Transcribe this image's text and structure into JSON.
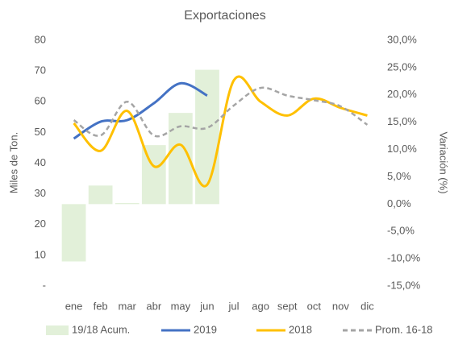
{
  "chart_data": {
    "type": "bar-line",
    "title": "Exportaciones",
    "y_label": "Miles de Ton.",
    "y2_label": "Variación (%)",
    "categories": [
      "ene",
      "feb",
      "mar",
      "abr",
      "may",
      "jun",
      "jul",
      "ago",
      "sept",
      "oct",
      "nov",
      "dic"
    ],
    "ylim": [
      0,
      80
    ],
    "yticks": [
      {
        "value": 0,
        "label": "-"
      },
      10,
      20,
      30,
      40,
      50,
      60,
      70,
      80
    ],
    "y2lim": [
      -15,
      30
    ],
    "y2ticks": [
      {
        "value": -15,
        "label": "-15,0%"
      },
      {
        "value": -10,
        "label": "-10,0%"
      },
      {
        "value": -5,
        "label": "-5,0%"
      },
      {
        "value": 0,
        "label": "0,0%"
      },
      {
        "value": 5,
        "label": "5,0%"
      },
      {
        "value": 10,
        "label": "10,0%"
      },
      {
        "value": 15,
        "label": "15,0%"
      },
      {
        "value": 20,
        "label": "20,0%"
      },
      {
        "value": 25,
        "label": "25,0%"
      },
      {
        "value": 30,
        "label": "30,0%"
      }
    ],
    "series": [
      {
        "name": "19/18 Acum.",
        "type": "bar",
        "axis": "y2",
        "color": "#e2f0d9",
        "values": [
          -10.5,
          3.4,
          0.2,
          10.8,
          16.7,
          24.6,
          null,
          null,
          null,
          null,
          null,
          null
        ]
      },
      {
        "name": "2019",
        "type": "line",
        "color": "#4472c4",
        "values": [
          48,
          53.5,
          54,
          59.5,
          66,
          62,
          null,
          null,
          null,
          null,
          null,
          null
        ]
      },
      {
        "name": "2018",
        "type": "line",
        "color": "#ffc000",
        "values": [
          53,
          44,
          57,
          39,
          46,
          33,
          67,
          60,
          55.5,
          61,
          58,
          55.5
        ]
      },
      {
        "name": "Prom. 16-18",
        "type": "line",
        "color": "#a5a5a5",
        "dashed": true,
        "values": [
          54,
          49,
          60,
          49,
          52,
          51.5,
          58.8,
          64.5,
          62,
          60.5,
          58.5,
          52.5
        ]
      }
    ]
  }
}
